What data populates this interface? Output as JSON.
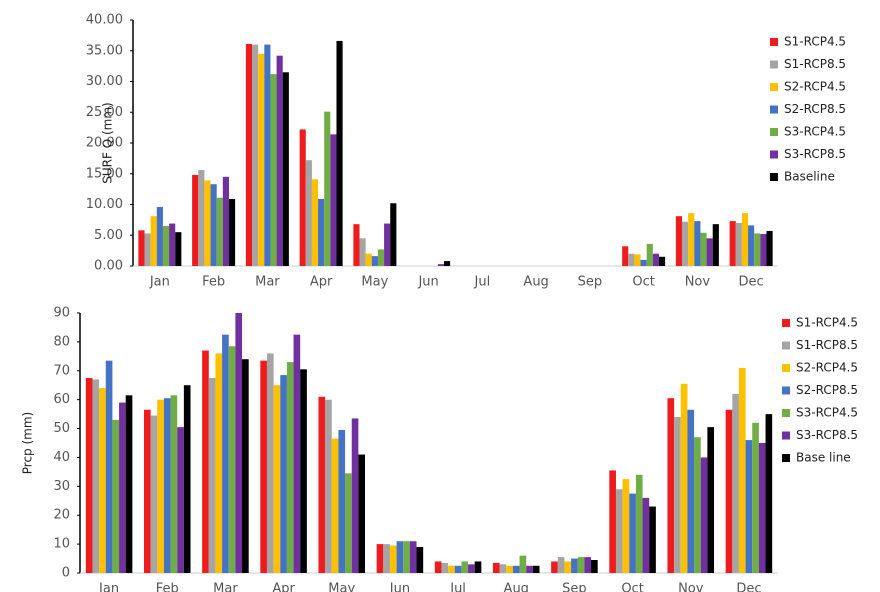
{
  "chart_data": [
    {
      "type": "bar",
      "y_label": "SURF Q (mm)",
      "categories": [
        "Jan",
        "Feb",
        "Mar",
        "Apr",
        "May",
        "Jun",
        "Jul",
        "Aug",
        "Sep",
        "Oct",
        "Nov",
        "Dec"
      ],
      "ylim": [
        0,
        40
      ],
      "yticks": [
        {
          "value": 0,
          "label": "0.00"
        },
        {
          "value": 5,
          "label": "5.00"
        },
        {
          "value": 10,
          "label": "10.00"
        },
        {
          "value": 15,
          "label": "15.00"
        },
        {
          "value": 20,
          "label": "20.00"
        },
        {
          "value": 25,
          "label": "25.00"
        },
        {
          "value": 30,
          "label": "30.00"
        },
        {
          "value": 35,
          "label": "35.00"
        },
        {
          "value": 40,
          "label": "40.00"
        }
      ],
      "series": [
        {
          "name": "S1-RCP4.5",
          "color": "#ee1c1c",
          "values": [
            5.8,
            14.8,
            36.1,
            22.2,
            6.8,
            0,
            0,
            0,
            0,
            3.2,
            8.1,
            7.3
          ]
        },
        {
          "name": "S1-RCP8.5",
          "color": "#a5a5a5",
          "values": [
            5.3,
            15.6,
            36.0,
            17.2,
            4.5,
            0,
            0,
            0,
            0,
            2.0,
            7.2,
            7.0
          ]
        },
        {
          "name": "S2-RCP4.5",
          "color": "#ffc000",
          "values": [
            8.1,
            13.9,
            34.5,
            14.1,
            2.0,
            0,
            0,
            0,
            0,
            1.9,
            8.6,
            8.6
          ]
        },
        {
          "name": "S2-RCP8.5",
          "color": "#4472c4",
          "values": [
            9.6,
            13.3,
            36.0,
            10.9,
            1.6,
            0,
            0,
            0,
            0,
            1.0,
            7.3,
            6.6
          ]
        },
        {
          "name": "S3-RCP4.5",
          "color": "#70ad47",
          "values": [
            6.5,
            11.1,
            31.2,
            25.1,
            2.7,
            0,
            0,
            0,
            0,
            3.6,
            5.4,
            5.3
          ]
        },
        {
          "name": "S3-RCP8.5",
          "color": "#7030a0",
          "values": [
            6.9,
            14.5,
            34.2,
            21.4,
            6.9,
            0.3,
            0,
            0,
            0,
            2.0,
            4.5,
            5.2
          ]
        },
        {
          "name": "Baseline",
          "color": "#000000",
          "values": [
            5.5,
            10.9,
            31.5,
            36.6,
            10.2,
            0.8,
            0,
            0,
            0,
            1.5,
            6.8,
            5.7
          ]
        }
      ]
    },
    {
      "type": "bar",
      "y_label": "Prcp (mm)",
      "categories": [
        "Jan",
        "Feb",
        "Mar",
        "Apr",
        "May",
        "Jun",
        "Jul",
        "Aug",
        "Sep",
        "Oct",
        "Nov",
        "Dec"
      ],
      "ylim": [
        0,
        90
      ],
      "yticks": [
        0,
        10,
        20,
        30,
        40,
        50,
        60,
        70,
        80,
        90
      ],
      "series": [
        {
          "name": "S1-RCP4.5",
          "color": "#ee1c1c",
          "values": [
            67.5,
            56.5,
            77,
            73.5,
            61,
            10,
            4,
            3.5,
            4,
            35.5,
            60.5,
            56.5
          ]
        },
        {
          "name": "S1-RCP8.5",
          "color": "#a5a5a5",
          "values": [
            67,
            54.5,
            67.5,
            76,
            60,
            10,
            3.5,
            3,
            5.5,
            29,
            54,
            62
          ]
        },
        {
          "name": "S2-RCP4.5",
          "color": "#ffc000",
          "values": [
            64,
            60,
            76,
            65,
            46.5,
            9.5,
            2.5,
            2.5,
            4,
            32.5,
            65.5,
            71
          ]
        },
        {
          "name": "S2-RCP8.5",
          "color": "#4472c4",
          "values": [
            73.5,
            60.5,
            82.5,
            68.5,
            49.5,
            11,
            2.5,
            2.5,
            5,
            27.5,
            56.5,
            46
          ]
        },
        {
          "name": "S3-RCP4.5",
          "color": "#70ad47",
          "values": [
            53,
            61.5,
            78.5,
            73,
            34.5,
            11,
            4,
            6,
            5.5,
            34,
            47,
            52
          ]
        },
        {
          "name": "S3-RCP8.5",
          "color": "#7030a0",
          "values": [
            59,
            50.5,
            90,
            82.5,
            53.5,
            11,
            3,
            2.5,
            5.5,
            26,
            40,
            45
          ]
        },
        {
          "name": "Base line",
          "color": "#000000",
          "values": [
            61.5,
            65,
            74,
            70.5,
            41,
            9,
            4,
            2.5,
            4.5,
            23,
            50.5,
            55
          ]
        }
      ]
    }
  ]
}
